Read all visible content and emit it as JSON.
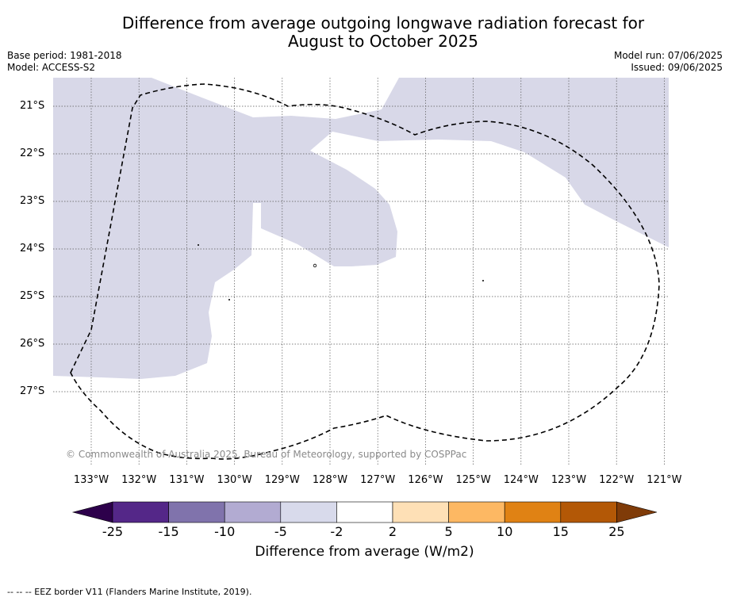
{
  "title": {
    "line1": "Difference from average outgoing longwave radiation forecast for",
    "line2": "August to October 2025"
  },
  "meta": {
    "base_period": "Base period: 1981-2018",
    "model": "Model: ACCESS-S2",
    "model_run": "Model run: 07/06/2025",
    "issued": "Issued: 09/06/2025"
  },
  "map": {
    "lat_labels": [
      "21°S",
      "22°S",
      "23°S",
      "24°S",
      "25°S",
      "26°S",
      "27°S"
    ],
    "lon_labels": [
      "133°W",
      "132°W",
      "131°W",
      "130°W",
      "129°W",
      "128°W",
      "127°W",
      "126°W",
      "125°W",
      "124°W",
      "123°W",
      "122°W",
      "121°W"
    ],
    "shaded_category": "-5 to -2",
    "shade_color": "#d8d8e8",
    "boundary_style": "dashed",
    "copyright": "© Commonwealth of Australia 2025, Bureau of Meteorology, supported by COSPPac"
  },
  "colorbar": {
    "ticks": [
      "-25",
      "-15",
      "-10",
      "-5",
      "-2",
      "2",
      "5",
      "10",
      "15",
      "25"
    ],
    "colors": [
      "#2d004b",
      "#542788",
      "#8073ac",
      "#b2abd2",
      "#d8daeb",
      "#ffffff",
      "#fee0b6",
      "#fdb863",
      "#e08214",
      "#b35806",
      "#7f3b08"
    ],
    "label": "Difference from average (W/m2)"
  },
  "footnote": "--  --  -- EEZ border V11 (Flanders Marine Institute, 2019)."
}
